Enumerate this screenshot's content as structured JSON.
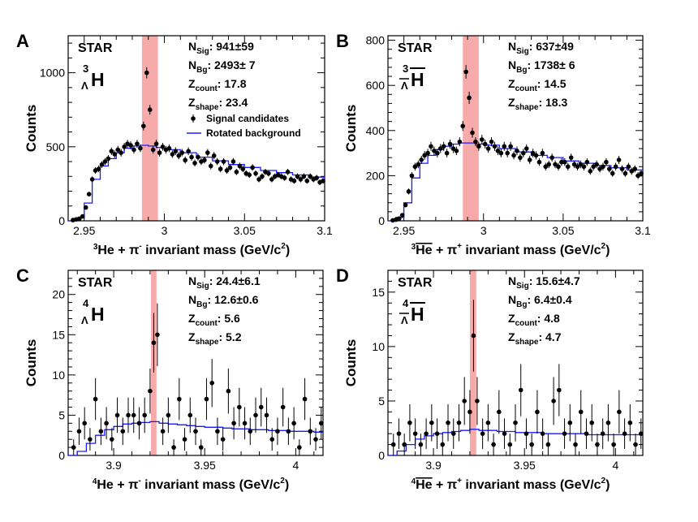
{
  "colors": {
    "band": "#f7aaaa",
    "model": "#1a1aff",
    "data": "#000000",
    "axis": "#000000"
  },
  "legend": {
    "signal": "Signal candidates",
    "background": "Rotated background"
  },
  "chart_data": [
    {
      "type": "scatter",
      "panel_letter": "A",
      "experiment": "STAR",
      "particle": {
        "super": "3",
        "sub": "Λ",
        "sym": "H",
        "anti": false
      },
      "xlabel": {
        "pre_sup": "3",
        "nucleus": "He",
        "nucleus_bar": false,
        "mid": " + π",
        "pion_charge": "-",
        "post": " invariant mass (GeV/c",
        "post_sup": "2",
        "tail": ")"
      },
      "ylabel": "Counts",
      "xlim": [
        2.94,
        3.1
      ],
      "ylim": [
        0,
        1250
      ],
      "xticks": [
        2.95,
        3.0,
        3.05,
        3.1
      ],
      "xtick_labels": [
        "2.95",
        "3",
        "3.05",
        "3.1"
      ],
      "yticks": [
        0,
        500,
        1000
      ],
      "ytick_labels": [
        "0",
        "500",
        "1000"
      ],
      "band": [
        2.986,
        2.996
      ],
      "stats": [
        {
          "label": "N",
          "sub": "Sig",
          "value": ":  941±59"
        },
        {
          "label": "N",
          "sub": "Bg",
          "value": ": 2493± 7"
        },
        {
          "label": "Z",
          "sub": "count",
          "value": ": 17.8"
        },
        {
          "label": "Z",
          "sub": "shape",
          "value": ": 23.4"
        }
      ],
      "show_legend": true,
      "points_x": [
        2.943,
        2.945,
        2.947,
        2.949,
        2.951,
        2.953,
        2.955,
        2.957,
        2.959,
        2.961,
        2.963,
        2.965,
        2.967,
        2.969,
        2.971,
        2.973,
        2.975,
        2.977,
        2.979,
        2.981,
        2.983,
        2.985,
        2.987,
        2.989,
        2.991,
        2.993,
        2.995,
        2.997,
        2.999,
        3.001,
        3.003,
        3.005,
        3.007,
        3.009,
        3.011,
        3.013,
        3.015,
        3.017,
        3.019,
        3.021,
        3.023,
        3.025,
        3.027,
        3.029,
        3.031,
        3.033,
        3.035,
        3.037,
        3.039,
        3.041,
        3.043,
        3.045,
        3.047,
        3.049,
        3.051,
        3.053,
        3.055,
        3.057,
        3.059,
        3.061,
        3.063,
        3.065,
        3.067,
        3.069,
        3.071,
        3.073,
        3.075,
        3.077,
        3.079,
        3.081,
        3.083,
        3.085,
        3.087,
        3.089,
        3.091,
        3.093,
        3.095,
        3.097,
        3.099
      ],
      "points_y": [
        5,
        10,
        15,
        30,
        90,
        180,
        280,
        340,
        350,
        380,
        400,
        420,
        470,
        450,
        480,
        460,
        500,
        520,
        510,
        480,
        520,
        490,
        640,
        1000,
        750,
        480,
        520,
        460,
        500,
        480,
        490,
        450,
        470,
        440,
        460,
        410,
        470,
        430,
        390,
        430,
        400,
        410,
        460,
        370,
        440,
        400,
        350,
        400,
        340,
        360,
        400,
        330,
        370,
        350,
        320,
        310,
        360,
        320,
        280,
        300,
        330,
        320,
        280,
        300,
        310,
        300,
        290,
        330,
        280,
        270,
        300,
        280,
        300,
        270,
        300,
        280,
        290,
        260,
        270
      ],
      "points_err": [
        3,
        4,
        5,
        7,
        12,
        16,
        20,
        22,
        22,
        23,
        24,
        24,
        25,
        25,
        26,
        26,
        26,
        27,
        27,
        26,
        27,
        26,
        30,
        38,
        33,
        26,
        27,
        26,
        26,
        26,
        26,
        25,
        26,
        25,
        25,
        24,
        26,
        24,
        23,
        24,
        23,
        24,
        25,
        23,
        25,
        24,
        22,
        24,
        22,
        22,
        24,
        21,
        23,
        22,
        21,
        21,
        22,
        21,
        20,
        20,
        21,
        21,
        20,
        20,
        21,
        20,
        20,
        21,
        20,
        19,
        20,
        20,
        20,
        19,
        20,
        20,
        20,
        19,
        19
      ],
      "model_x": [
        2.94,
        2.945,
        2.95,
        2.955,
        2.96,
        2.965,
        2.97,
        2.975,
        2.98,
        2.985,
        2.99,
        2.995,
        3.0,
        3.01,
        3.02,
        3.03,
        3.04,
        3.05,
        3.06,
        3.07,
        3.08,
        3.09,
        3.1
      ],
      "model_y": [
        0,
        20,
        120,
        280,
        370,
        420,
        460,
        490,
        505,
        510,
        505,
        495,
        480,
        460,
        430,
        405,
        380,
        360,
        340,
        325,
        310,
        295,
        280
      ]
    },
    {
      "type": "scatter",
      "panel_letter": "B",
      "experiment": "STAR",
      "particle": {
        "super": "3",
        "sub": "Λ",
        "sym": "H",
        "anti": true
      },
      "xlabel": {
        "pre_sup": "3",
        "nucleus": "He",
        "nucleus_bar": true,
        "mid": " + π",
        "pion_charge": "+",
        "post": " invariant mass (GeV/c",
        "post_sup": "2",
        "tail": ")"
      },
      "ylabel": "Counts",
      "xlim": [
        2.94,
        3.1
      ],
      "ylim": [
        0,
        820
      ],
      "xticks": [
        2.95,
        3.0,
        3.05,
        3.1
      ],
      "xtick_labels": [
        "2.95",
        "3",
        "3.05",
        "3.1"
      ],
      "yticks": [
        0,
        200,
        400,
        600,
        800
      ],
      "ytick_labels": [
        "0",
        "200",
        "400",
        "600",
        "800"
      ],
      "band": [
        2.987,
        2.997
      ],
      "stats": [
        {
          "label": "N",
          "sub": "Sig",
          "value": ":  637±49"
        },
        {
          "label": "N",
          "sub": "Bg",
          "value": ": 1738± 6"
        },
        {
          "label": "Z",
          "sub": "count",
          "value": ": 14.5"
        },
        {
          "label": "Z",
          "sub": "shape",
          "value": ": 18.3"
        }
      ],
      "show_legend": false,
      "points_x": [
        2.943,
        2.945,
        2.947,
        2.949,
        2.951,
        2.953,
        2.955,
        2.957,
        2.959,
        2.961,
        2.963,
        2.965,
        2.967,
        2.969,
        2.971,
        2.973,
        2.975,
        2.977,
        2.979,
        2.981,
        2.983,
        2.985,
        2.987,
        2.989,
        2.991,
        2.993,
        2.995,
        2.997,
        2.999,
        3.001,
        3.003,
        3.005,
        3.007,
        3.009,
        3.011,
        3.013,
        3.015,
        3.017,
        3.019,
        3.021,
        3.023,
        3.025,
        3.027,
        3.029,
        3.031,
        3.033,
        3.035,
        3.037,
        3.039,
        3.041,
        3.043,
        3.045,
        3.047,
        3.049,
        3.051,
        3.053,
        3.055,
        3.057,
        3.059,
        3.061,
        3.063,
        3.065,
        3.067,
        3.069,
        3.071,
        3.073,
        3.075,
        3.077,
        3.079,
        3.081,
        3.083,
        3.085,
        3.087,
        3.089,
        3.091,
        3.093,
        3.095,
        3.097,
        3.099
      ],
      "points_y": [
        2,
        5,
        10,
        25,
        70,
        130,
        200,
        240,
        250,
        270,
        290,
        300,
        330,
        310,
        300,
        320,
        330,
        300,
        340,
        320,
        310,
        350,
        420,
        660,
        545,
        390,
        350,
        330,
        360,
        340,
        320,
        350,
        330,
        310,
        300,
        330,
        300,
        330,
        290,
        310,
        280,
        300,
        320,
        270,
        300,
        290,
        260,
        300,
        240,
        250,
        280,
        250,
        240,
        260,
        260,
        240,
        280,
        250,
        240,
        250,
        240,
        260,
        220,
        240,
        250,
        230,
        240,
        260,
        230,
        210,
        240,
        270,
        230,
        210,
        240,
        220,
        230,
        200,
        210
      ],
      "points_err": [
        2,
        3,
        4,
        6,
        10,
        13,
        16,
        17,
        17,
        18,
        19,
        19,
        20,
        19,
        19,
        20,
        20,
        19,
        20,
        20,
        19,
        20,
        22,
        30,
        27,
        22,
        20,
        20,
        21,
        20,
        19,
        20,
        20,
        19,
        19,
        20,
        19,
        20,
        18,
        19,
        18,
        19,
        19,
        18,
        19,
        18,
        17,
        19,
        17,
        17,
        18,
        17,
        17,
        17,
        17,
        17,
        18,
        17,
        17,
        17,
        17,
        17,
        16,
        17,
        17,
        16,
        17,
        17,
        16,
        15,
        17,
        18,
        16,
        15,
        17,
        16,
        16,
        15,
        15
      ],
      "model_x": [
        2.94,
        2.945,
        2.95,
        2.955,
        2.96,
        2.965,
        2.97,
        2.975,
        2.98,
        2.985,
        2.99,
        2.995,
        3.0,
        3.01,
        3.02,
        3.03,
        3.04,
        3.05,
        3.06,
        3.07,
        3.08,
        3.09,
        3.1
      ],
      "model_y": [
        0,
        15,
        80,
        190,
        255,
        290,
        315,
        330,
        340,
        345,
        345,
        340,
        335,
        320,
        305,
        290,
        280,
        265,
        255,
        245,
        235,
        225,
        215
      ]
    },
    {
      "type": "scatter",
      "panel_letter": "C",
      "experiment": "STAR",
      "particle": {
        "super": "4",
        "sub": "Λ",
        "sym": "H",
        "anti": false
      },
      "xlabel": {
        "pre_sup": "4",
        "nucleus": "He",
        "nucleus_bar": false,
        "mid": " + π",
        "pion_charge": "-",
        "post": " invariant mass (GeV/c",
        "post_sup": "2",
        "tail": ")"
      },
      "ylabel": "Counts",
      "xlim": [
        3.875,
        4.015
      ],
      "ylim": [
        0,
        23
      ],
      "xticks": [
        3.9,
        3.95,
        4.0
      ],
      "xtick_labels": [
        "3.9",
        "3.95",
        "4"
      ],
      "yticks": [
        0,
        5,
        10,
        15,
        20
      ],
      "ytick_labels": [
        "0",
        "5",
        "10",
        "15",
        "20"
      ],
      "band": [
        3.9205,
        3.9235
      ],
      "stats": [
        {
          "label": "N",
          "sub": "Sig",
          "value": ": 24.4±6.1"
        },
        {
          "label": "N",
          "sub": "Bg",
          "value": ": 12.6±0.6"
        },
        {
          "label": "Z",
          "sub": "count",
          "value": ": 5.6"
        },
        {
          "label": "Z",
          "sub": "shape",
          "value": ": 5.2"
        }
      ],
      "show_legend": false,
      "points_x": [
        3.878,
        3.881,
        3.884,
        3.887,
        3.89,
        3.893,
        3.896,
        3.899,
        3.902,
        3.905,
        3.908,
        3.911,
        3.914,
        3.917,
        3.92,
        3.922,
        3.924,
        3.927,
        3.93,
        3.933,
        3.936,
        3.939,
        3.942,
        3.945,
        3.948,
        3.951,
        3.954,
        3.957,
        3.96,
        3.963,
        3.966,
        3.969,
        3.972,
        3.975,
        3.978,
        3.981,
        3.984,
        3.987,
        3.99,
        3.993,
        3.996,
        3.999,
        4.002,
        4.005,
        4.008,
        4.011,
        4.014
      ],
      "points_y": [
        1,
        3,
        4,
        2,
        7,
        3,
        4,
        2,
        5,
        3,
        5,
        5,
        4,
        5,
        8,
        14,
        15,
        3,
        5,
        1,
        7,
        2,
        5,
        3,
        1,
        7,
        9,
        3,
        2,
        8,
        4,
        6,
        4,
        3,
        5,
        6,
        5,
        2,
        3,
        6,
        3,
        4,
        1,
        7,
        3,
        2,
        4
      ],
      "points_err": [
        1,
        1.7,
        2,
        1.4,
        2.6,
        1.7,
        2,
        1.4,
        2.2,
        1.7,
        2.2,
        2.2,
        2,
        2.2,
        2.8,
        3.7,
        3.9,
        1.7,
        2.2,
        1,
        2.6,
        1.4,
        2.2,
        1.7,
        1,
        2.6,
        3,
        1.7,
        1.4,
        2.8,
        2,
        2.4,
        2,
        1.7,
        2.2,
        2.4,
        2.2,
        1.4,
        1.7,
        2.4,
        1.7,
        2,
        1,
        2.6,
        1.7,
        1.4,
        2
      ],
      "model_x": [
        3.875,
        3.88,
        3.885,
        3.89,
        3.895,
        3.9,
        3.905,
        3.91,
        3.915,
        3.92,
        3.925,
        3.93,
        3.935,
        3.94,
        3.945,
        3.95,
        3.955,
        3.96,
        3.965,
        3.97,
        3.975,
        3.98,
        3.985,
        3.99,
        3.995,
        4.0,
        4.005,
        4.01,
        4.015
      ],
      "model_y": [
        0,
        0.5,
        1.5,
        2.5,
        3.2,
        3.6,
        3.9,
        4.0,
        4.1,
        4.2,
        4.0,
        3.9,
        3.8,
        3.7,
        3.6,
        3.5,
        3.5,
        3.4,
        3.3,
        3.3,
        3.2,
        3.2,
        3.1,
        3.1,
        3.0,
        3.0,
        3.0,
        2.9,
        2.9
      ]
    },
    {
      "type": "scatter",
      "panel_letter": "D",
      "experiment": "STAR",
      "particle": {
        "super": "4",
        "sub": "Λ",
        "sym": "H",
        "anti": true
      },
      "xlabel": {
        "pre_sup": "4",
        "nucleus": "He",
        "nucleus_bar": true,
        "mid": " + π",
        "pion_charge": "+",
        "post": " invariant mass (GeV/c",
        "post_sup": "2",
        "tail": ")"
      },
      "ylabel": "Counts",
      "xlim": [
        3.875,
        4.015
      ],
      "ylim": [
        0,
        17
      ],
      "xticks": [
        3.9,
        3.95,
        4.0
      ],
      "xtick_labels": [
        "3.9",
        "3.95",
        "4"
      ],
      "yticks": [
        0,
        5,
        10,
        15
      ],
      "ytick_labels": [
        "0",
        "5",
        "10",
        "15"
      ],
      "band": [
        3.92,
        3.9235
      ],
      "stats": [
        {
          "label": "N",
          "sub": "Sig",
          "value": ": 15.6±4.7"
        },
        {
          "label": "N",
          "sub": "Bg",
          "value": ": 6.4±0.4"
        },
        {
          "label": "Z",
          "sub": "count",
          "value": ": 4.8"
        },
        {
          "label": "Z",
          "sub": "shape",
          "value": ": 4.7"
        }
      ],
      "show_legend": false,
      "points_x": [
        3.878,
        3.881,
        3.884,
        3.887,
        3.89,
        3.893,
        3.896,
        3.899,
        3.902,
        3.905,
        3.908,
        3.911,
        3.914,
        3.917,
        3.92,
        3.922,
        3.924,
        3.927,
        3.93,
        3.933,
        3.936,
        3.939,
        3.942,
        3.945,
        3.948,
        3.951,
        3.954,
        3.957,
        3.96,
        3.963,
        3.966,
        3.969,
        3.972,
        3.975,
        3.978,
        3.981,
        3.984,
        3.987,
        3.99,
        3.993,
        3.996,
        3.999,
        4.002,
        4.005,
        4.008,
        4.011,
        4.014
      ],
      "points_y": [
        1,
        2,
        1,
        3,
        2,
        1,
        2,
        3,
        2,
        1,
        3,
        2,
        3,
        5,
        4,
        11,
        5,
        2,
        3,
        1,
        4,
        2,
        1,
        3,
        6,
        2,
        1,
        4,
        2,
        1,
        5,
        6,
        2,
        3,
        1,
        4,
        2,
        3,
        1,
        2,
        3,
        1,
        4,
        2,
        3,
        1,
        2
      ],
      "points_err": [
        1,
        1.4,
        1,
        1.7,
        1.4,
        1,
        1.4,
        1.7,
        1.4,
        1,
        1.7,
        1.4,
        1.7,
        2.2,
        2,
        3.3,
        2.2,
        1.4,
        1.7,
        1,
        2,
        1.4,
        1,
        1.7,
        2.4,
        1.4,
        1,
        2,
        1.4,
        1,
        2.2,
        2.4,
        1.4,
        1.7,
        1,
        2,
        1.4,
        1.7,
        1,
        1.4,
        1.7,
        1,
        2,
        1.4,
        1.7,
        1,
        1.4
      ],
      "model_x": [
        3.875,
        3.88,
        3.885,
        3.89,
        3.895,
        3.9,
        3.905,
        3.91,
        3.915,
        3.92,
        3.925,
        3.93,
        3.935,
        3.94,
        3.945,
        3.95,
        3.955,
        3.96,
        3.965,
        3.97,
        3.975,
        3.98,
        3.985,
        3.99,
        3.995,
        4.0,
        4.005,
        4.01,
        4.015
      ],
      "model_y": [
        0,
        0.4,
        1.0,
        1.5,
        1.8,
        2.0,
        2.1,
        2.2,
        2.3,
        2.4,
        2.3,
        2.3,
        2.2,
        2.2,
        2.1,
        2.1,
        2.1,
        2.0,
        2.0,
        2.0,
        2.0,
        2.0,
        1.9,
        1.9,
        1.9,
        1.9,
        1.9,
        1.9,
        1.9
      ]
    }
  ]
}
